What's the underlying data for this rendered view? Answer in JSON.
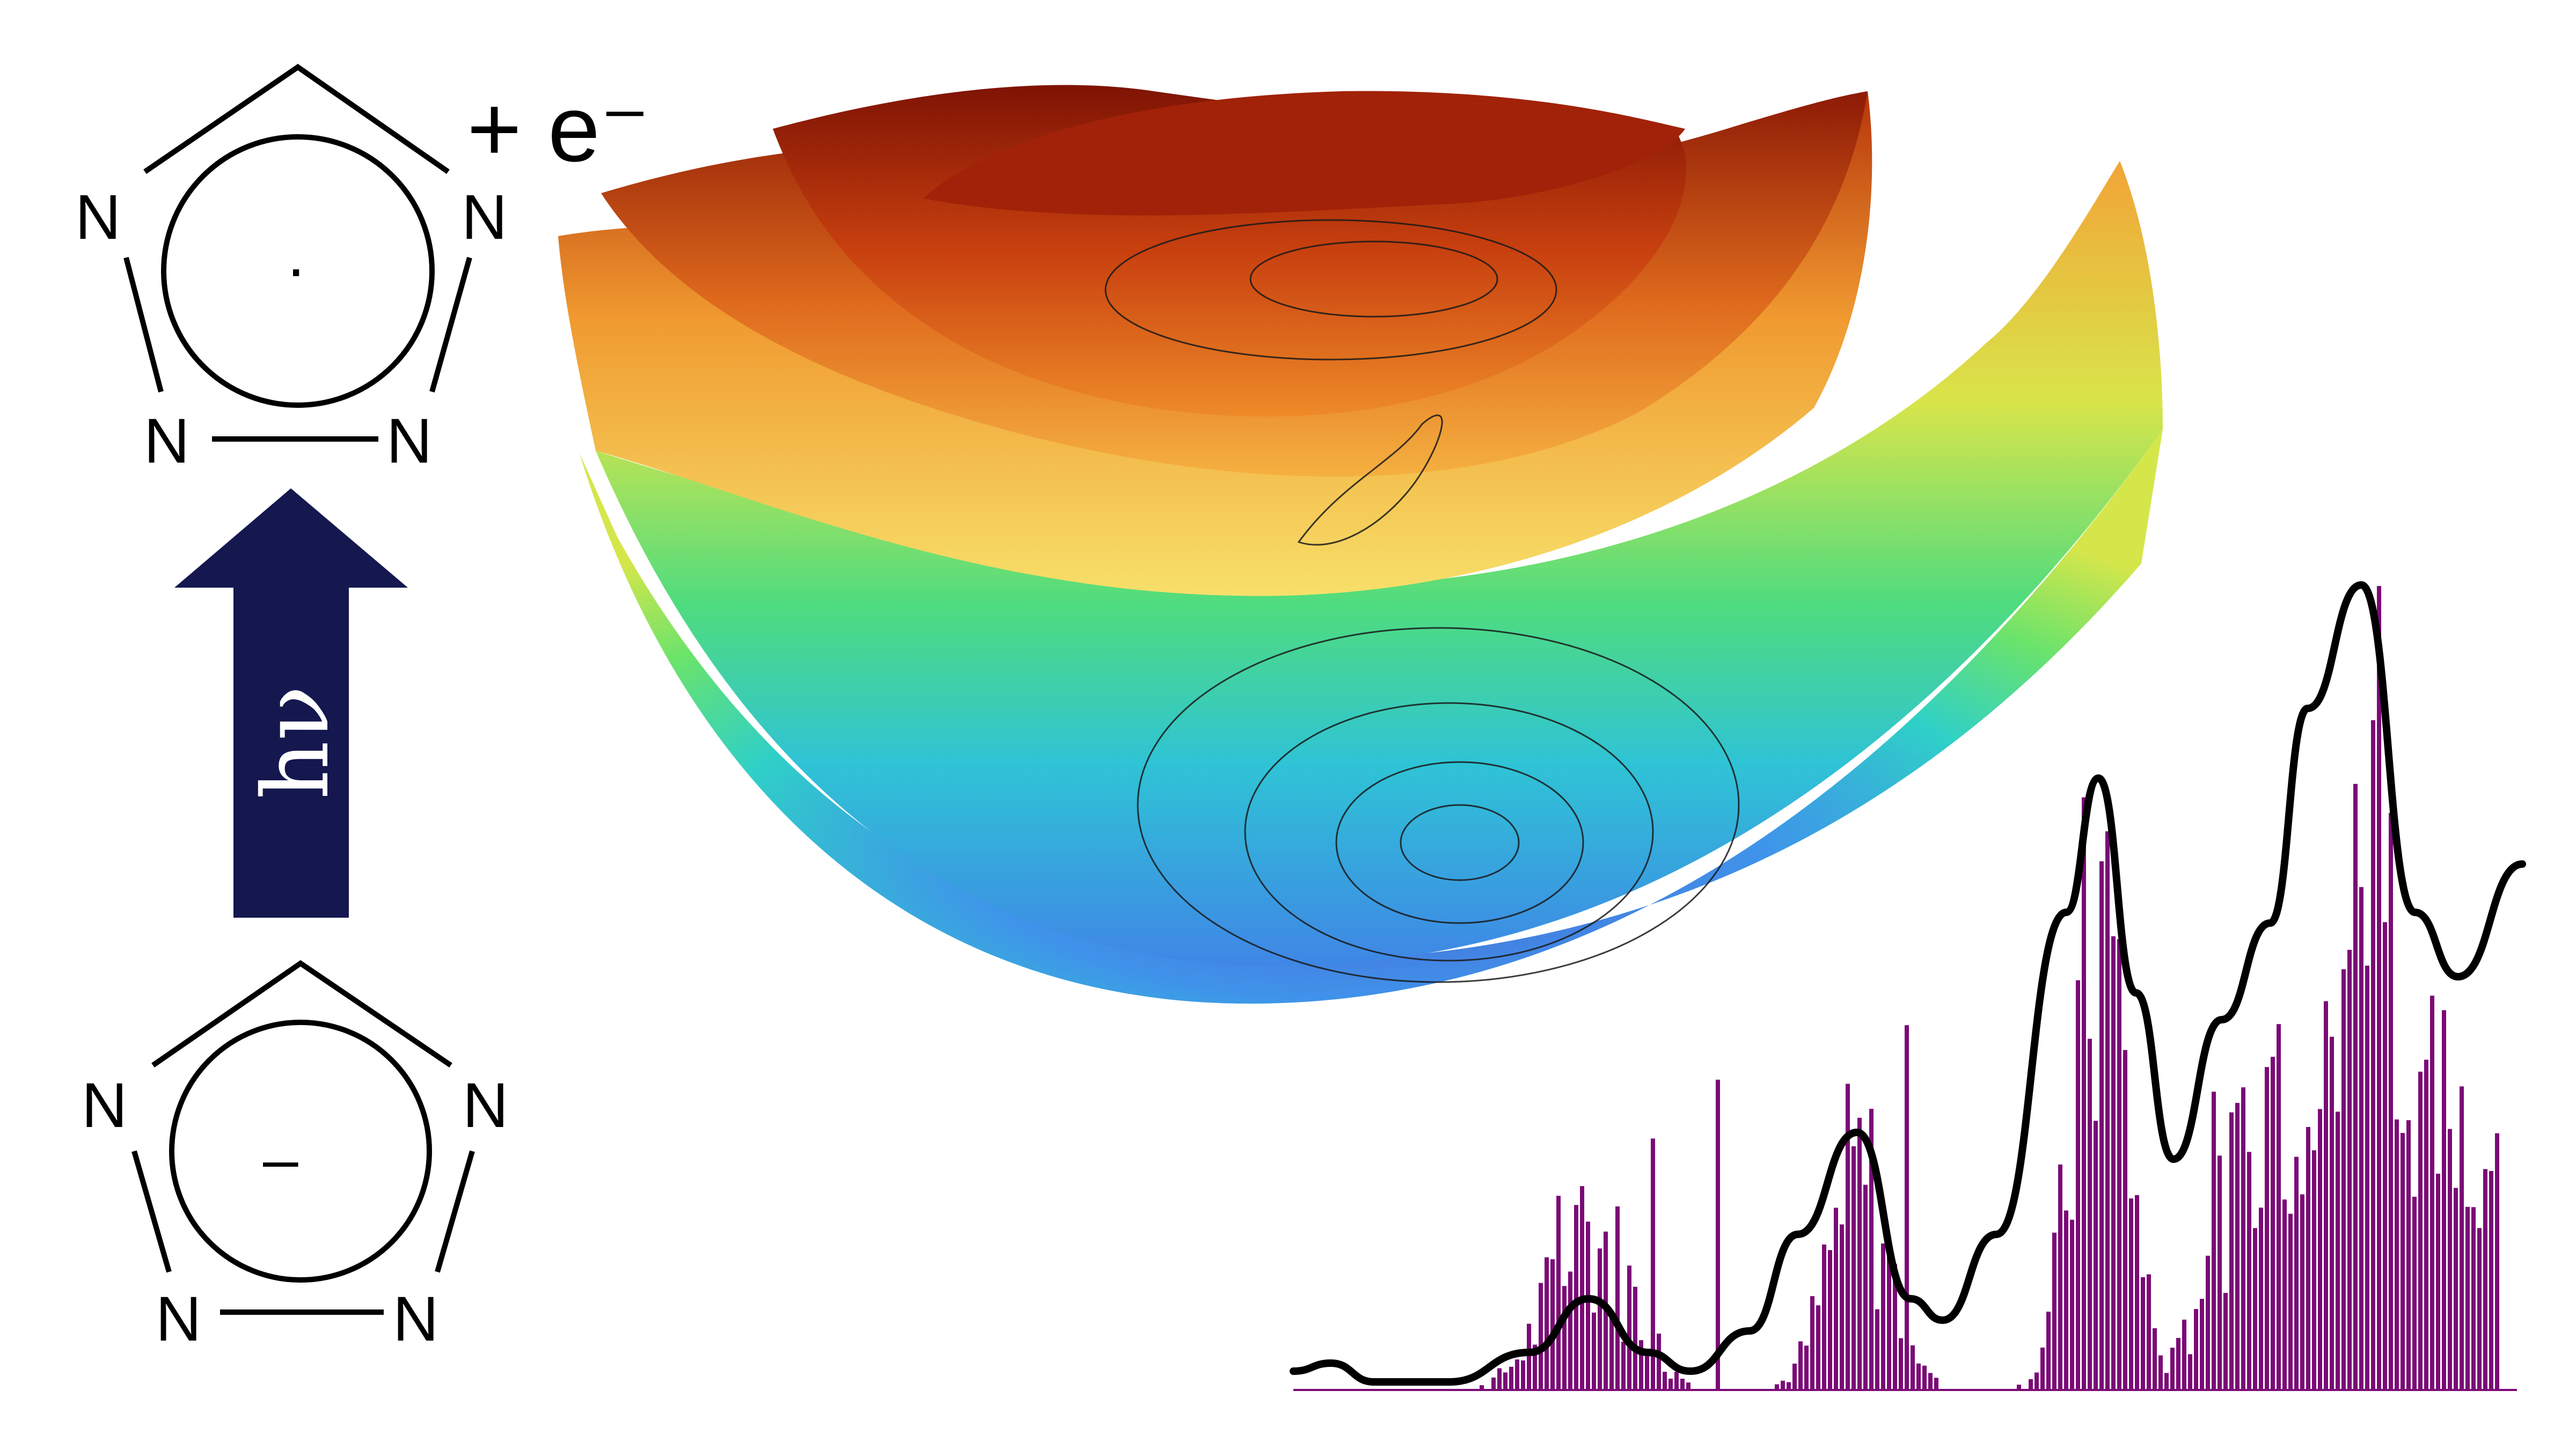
{
  "top_molecule": {
    "atoms": [
      "N",
      "N",
      "N",
      "N"
    ],
    "radical_dot": "·",
    "detached_electron": "+ e⁻"
  },
  "bottom_molecule": {
    "atoms": [
      "N",
      "N",
      "N",
      "N"
    ],
    "charge": "–"
  },
  "photon_arrow": {
    "label": "hν",
    "color": "#15174f"
  },
  "surfaces": {
    "count": 5,
    "colormap": "jet",
    "high_color": "#8e1a06",
    "low_color": "#4b6ad6"
  },
  "spectrum": {
    "stick_color": "#7b0a76",
    "envelope_color": "#000000"
  }
}
